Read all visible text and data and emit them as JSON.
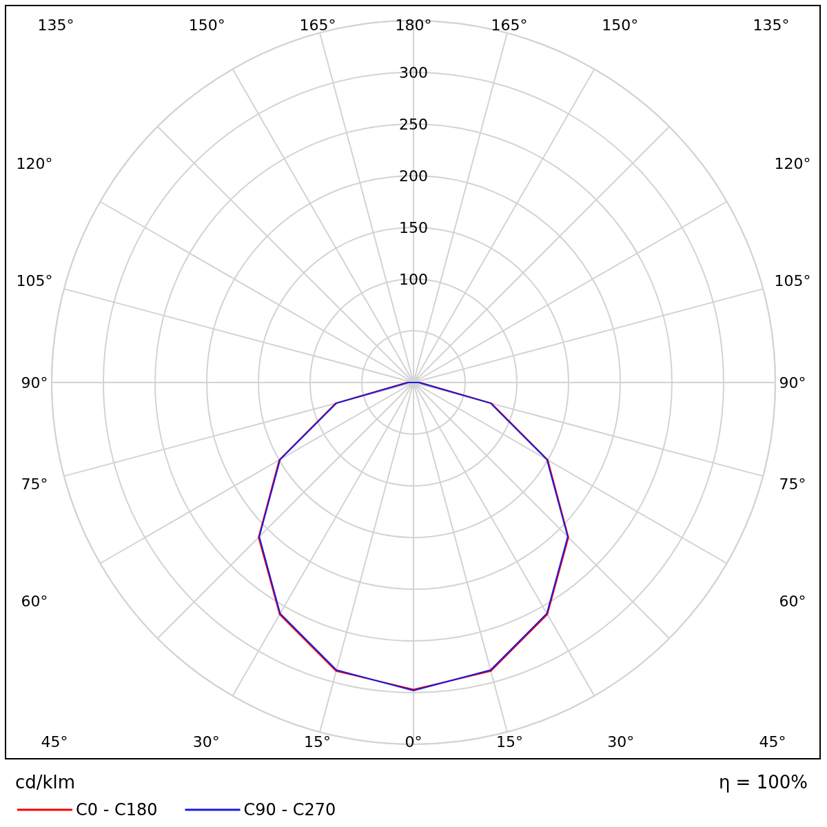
{
  "chart_data": {
    "type": "radar",
    "ylabel": "cd/klm",
    "annotations": [
      "η = 100%"
    ],
    "categories": [
      "180°",
      "165°",
      "150°",
      "135°",
      "120°",
      "105°",
      "90°",
      "75°",
      "60°",
      "45°",
      "30°",
      "15°",
      "0°",
      "15°",
      "30°",
      "45°",
      "60°",
      "75°",
      "90°",
      "105°",
      "120°",
      "135°",
      "150°",
      "165°"
    ],
    "series": [
      {
        "name": "C0 - C180",
        "color": "#ff0000",
        "values": [
          0,
          0,
          0,
          0,
          0,
          0,
          6,
          78,
          150,
          212,
          259,
          289,
          297,
          289,
          259,
          212,
          150,
          78,
          6,
          0,
          0,
          0,
          0,
          0
        ]
      },
      {
        "name": "C90 - C270",
        "color": "#1a1ae0",
        "values": [
          0,
          0,
          0,
          0,
          0,
          0,
          5,
          77,
          149,
          211,
          258,
          288,
          298,
          288,
          258,
          211,
          149,
          77,
          5,
          0,
          0,
          0,
          0,
          0
        ]
      }
    ],
    "ylim": [
      0,
      350
    ],
    "yticks": [
      100,
      150,
      200,
      250,
      300
    ],
    "grid": true,
    "legend": "bottom left",
    "marker": "none",
    "line_style": "solid"
  }
}
